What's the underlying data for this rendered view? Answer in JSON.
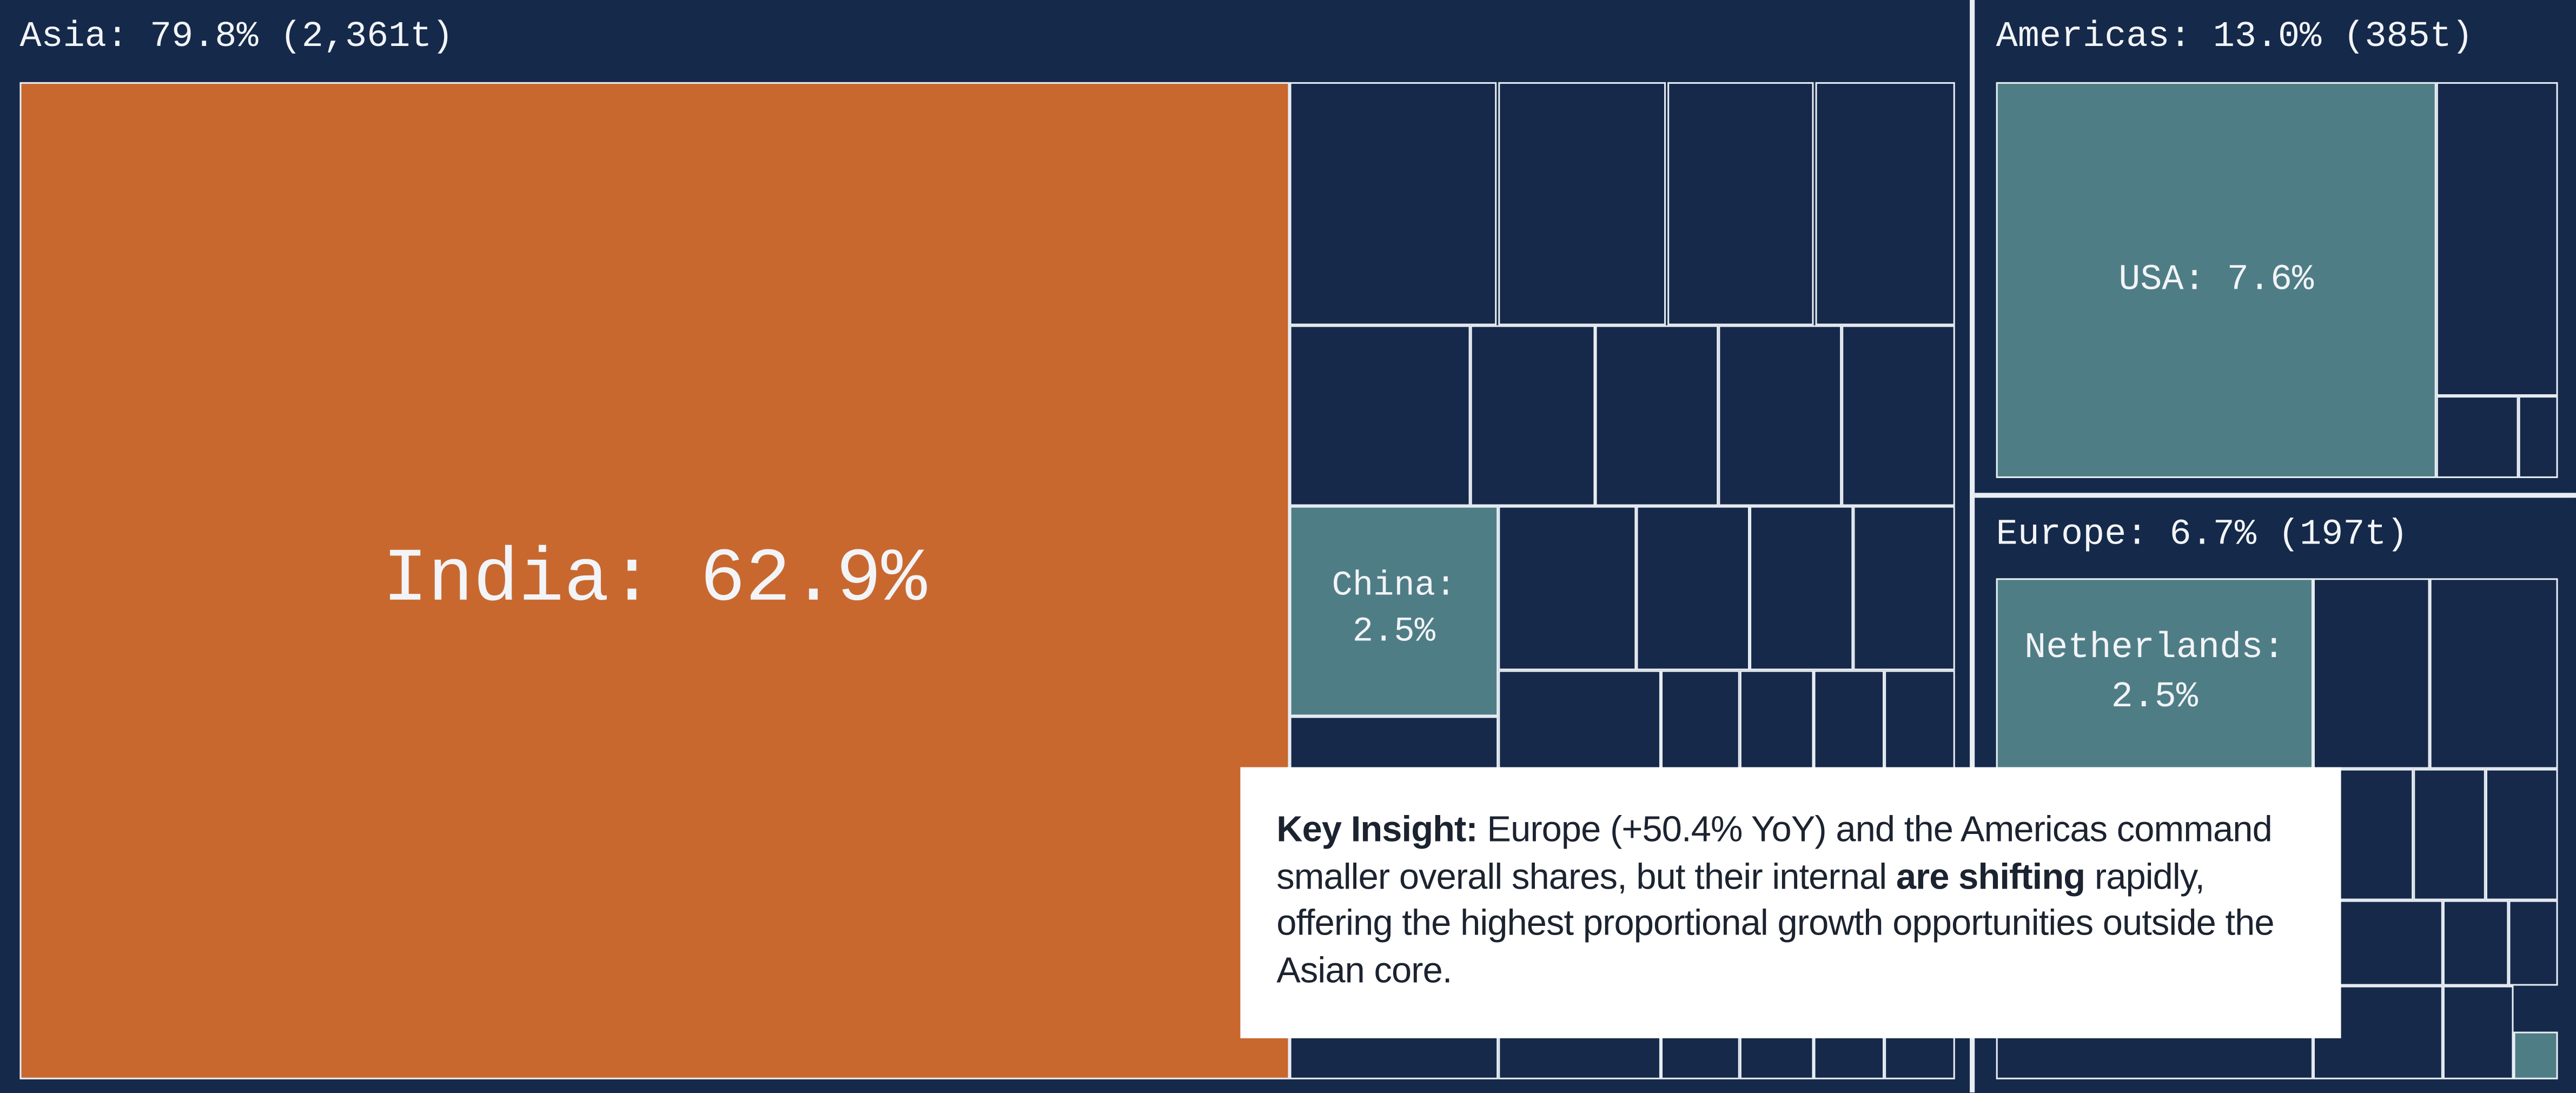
{
  "chart_data": {
    "type": "treemap",
    "groups": [
      {
        "label": "Asia: 79.8% (2,361t)",
        "items": [
          {
            "label": "India: 62.9%"
          },
          {
            "label": "China: 2.5%"
          }
        ]
      },
      {
        "label": "Americas: 13.0% (385t)",
        "items": [
          {
            "label": "USA: 7.6%"
          }
        ]
      },
      {
        "label": "Europe: 6.7% (197t)",
        "items": [
          {
            "label": "Netherlands: 2.5%"
          }
        ]
      }
    ],
    "insight": {
      "heading": "Key Insight:",
      "text_1": "Europe (+50.4% YoY) and the Americas command smaller overall shares, but their internal",
      "emphasis": "are shifting",
      "text_2": "rapidly, offering the highest proportional growth opportunities outside the Asian core."
    }
  }
}
